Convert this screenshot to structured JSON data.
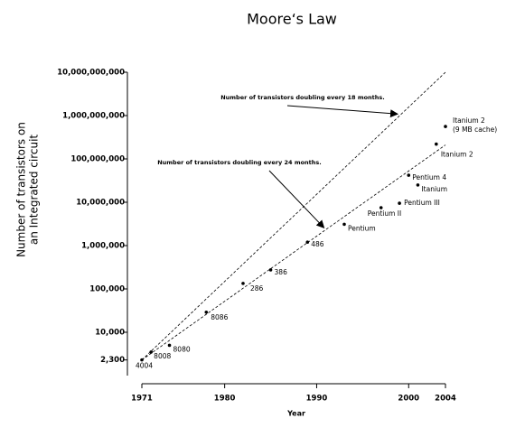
{
  "chart_data": {
    "type": "scatter",
    "title": "Moore‘s Law",
    "xlabel": "Year",
    "ylabel": [
      "Number of transistors on",
      "an Integrated circuit"
    ],
    "xlim": [
      1971,
      2004
    ],
    "ylim": [
      1000,
      10000000000
    ],
    "log_y": true,
    "color": "#000000",
    "xticks": [
      1971,
      1980,
      1990,
      2000,
      2004
    ],
    "yticks": [
      {
        "value": 2300,
        "label": "2,300"
      },
      {
        "value": 10000,
        "label": "10,000"
      },
      {
        "value": 100000,
        "label": "100,000"
      },
      {
        "value": 1000000,
        "label": "1,000,000"
      },
      {
        "value": 10000000,
        "label": "10,000,000"
      },
      {
        "value": 100000000,
        "label": "100,000,000"
      },
      {
        "value": 1000000000,
        "label": "1,000,000,000"
      },
      {
        "value": 10000000000,
        "label": "10,000,000,000"
      }
    ],
    "points": {
      "x": [
        1971,
        1972,
        1974,
        1978,
        1982,
        1985,
        1989,
        1993,
        1997,
        1999,
        2000,
        2001,
        2003,
        2004
      ],
      "values": [
        2300,
        3500,
        5000,
        29000,
        134000,
        275000,
        1200000,
        3100000,
        7500000,
        9500000,
        42000000,
        25000000,
        220000000,
        560000000
      ],
      "labels": [
        "4004",
        "8008",
        "8080",
        "8086",
        "286",
        "386",
        "486",
        "Pentium",
        "Pentium II",
        "Pentium III",
        "Pentium 4",
        "Itanium",
        "Itanium 2",
        [
          "Itanium 2",
          "(9 MB cache)"
        ]
      ]
    },
    "trend_lines": [
      {
        "x": [
          1971,
          2004
        ],
        "values": [
          2300,
          10000000000
        ],
        "annotation": "Number of transistors doubling every 18 months."
      },
      {
        "x": [
          1971,
          2004
        ],
        "values": [
          2300,
          210000000
        ],
        "annotation": "Number of transistors doubling every 24 months."
      }
    ]
  }
}
